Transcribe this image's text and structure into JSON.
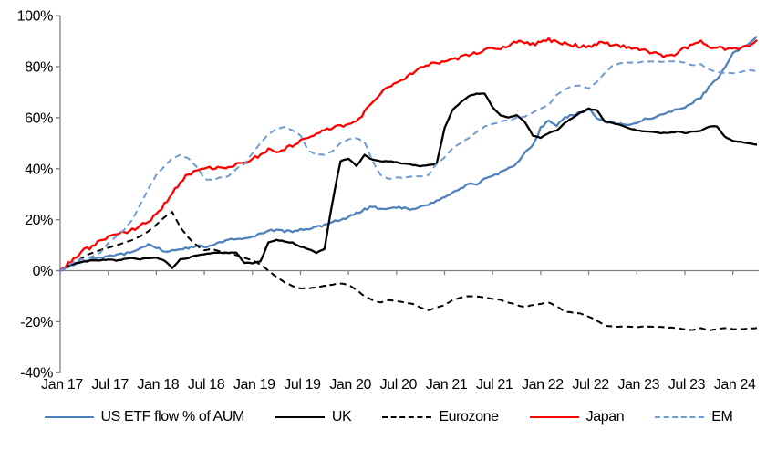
{
  "chart_data": {
    "type": "line",
    "title": "",
    "x_axis": {
      "tick_labels": [
        "Jan 17",
        "Jul 17",
        "Jan 18",
        "Jul 18",
        "Jan 19",
        "Jul 19",
        "Jan 20",
        "Jul 20",
        "Jan 21",
        "Jul 21",
        "Jan 22",
        "Jul 22",
        "Jan 23",
        "Jul 23",
        "Jan 24"
      ],
      "tick_month_indices": [
        0,
        6,
        12,
        18,
        24,
        30,
        36,
        42,
        48,
        54,
        60,
        66,
        72,
        78,
        84
      ]
    },
    "y_axis": {
      "min": -40,
      "max": 100,
      "tick_step": 20,
      "tick_labels": [
        "100%",
        "80%",
        "60%",
        "40%",
        "20%",
        "0%",
        "-20%",
        "-40%"
      ],
      "grid": "zero-line-only"
    },
    "x_start_month": "Jan 2017",
    "x_end_month": "Apr 2024",
    "axis_color": "#808080",
    "series": [
      {
        "name": "US ETF flow % of AUM",
        "color": "#4f81bd",
        "style": "solid",
        "noise": 0.45,
        "values": [
          0,
          1.5,
          3,
          4,
          4.5,
          5,
          5.5,
          6,
          6.5,
          7.5,
          9,
          10,
          9,
          7.5,
          8,
          8.5,
          9,
          9.5,
          9.5,
          10,
          11,
          12,
          12.5,
          13,
          13.5,
          14.5,
          15.5,
          16,
          15.5,
          15.5,
          16,
          16.5,
          17,
          18,
          19,
          20,
          21,
          22.5,
          24,
          25,
          24,
          24.5,
          25,
          24.5,
          24,
          25,
          26,
          27.5,
          29,
          30.5,
          32,
          34.5,
          34,
          36,
          37,
          38.5,
          40,
          42,
          46,
          49,
          56,
          59,
          57,
          60,
          61,
          62,
          63.5,
          60,
          58.5,
          58,
          57.5,
          57.5,
          58,
          59.5,
          60,
          61,
          62,
          63,
          64,
          66,
          68,
          72,
          75,
          80,
          85,
          87.5,
          89,
          92
        ]
      },
      {
        "name": "UK",
        "color": "#000000",
        "style": "solid",
        "noise": 0.15,
        "values": [
          0,
          2,
          3,
          3.5,
          4,
          4,
          4.5,
          4,
          4.5,
          5,
          4.5,
          5,
          5,
          4,
          1,
          4.5,
          5,
          6,
          6.5,
          7,
          7,
          7,
          7,
          3,
          3,
          3.5,
          11,
          12,
          11.5,
          11,
          9.5,
          8.5,
          7,
          8.5,
          27,
          43,
          44,
          41,
          45.5,
          43.5,
          43,
          43,
          42.5,
          42,
          41.5,
          41,
          41.5,
          42,
          56,
          63,
          66,
          68.5,
          69.5,
          69.5,
          64,
          61,
          60,
          61,
          58.5,
          53,
          52,
          54,
          55,
          58,
          60,
          62,
          63.5,
          63,
          58.5,
          58,
          57,
          56,
          55,
          54.5,
          54.5,
          54,
          54,
          54.5,
          54,
          54.5,
          55,
          56.5,
          56.5,
          52.5,
          51,
          50.5,
          50,
          49.5
        ]
      },
      {
        "name": "Eurozone",
        "color": "#000000",
        "style": "dashed",
        "noise": 0.1,
        "values": [
          0,
          2,
          3.5,
          5.5,
          7,
          8,
          9,
          10,
          11,
          12,
          13.5,
          15.5,
          18,
          21,
          23,
          17,
          13,
          10,
          8,
          8.5,
          7.5,
          7,
          6,
          5,
          4,
          2.5,
          0,
          -2.5,
          -4.5,
          -6,
          -7,
          -7,
          -6.5,
          -6,
          -5.5,
          -5,
          -5.5,
          -7.5,
          -10,
          -11.5,
          -12.5,
          -11.5,
          -12,
          -12.5,
          -13,
          -14.5,
          -15.5,
          -14.5,
          -13.5,
          -11.5,
          -10.5,
          -10,
          -10,
          -10.5,
          -11,
          -11.5,
          -12.5,
          -13.5,
          -14.3,
          -13.5,
          -13,
          -12.5,
          -14,
          -16,
          -16.5,
          -16.8,
          -18,
          -19.6,
          -21.5,
          -22,
          -22,
          -22,
          -22,
          -22,
          -22,
          -22,
          -22.3,
          -22.5,
          -23,
          -23.3,
          -22.5,
          -23.5,
          -23,
          -22.5,
          -23,
          -23,
          -22.8,
          -22.5
        ]
      },
      {
        "name": "Japan",
        "color": "#ff0000",
        "style": "solid",
        "noise": 0.7,
        "values": [
          0,
          3,
          5,
          8,
          9.5,
          12,
          13,
          14,
          15,
          16,
          17.5,
          19.5,
          22,
          26,
          30,
          35,
          38,
          39,
          40.5,
          40,
          41,
          40,
          41.5,
          42,
          44,
          45.5,
          47.5,
          46.5,
          48,
          49,
          51,
          52.5,
          54,
          55,
          56,
          56.5,
          57.5,
          59,
          62,
          66.5,
          69.5,
          72,
          73.5,
          75.5,
          77.5,
          80,
          81,
          81.5,
          82,
          83,
          83.5,
          84.5,
          85.5,
          86.5,
          87,
          87.5,
          88.5,
          90,
          89,
          88.8,
          89.5,
          90.5,
          90,
          89,
          88.5,
          88,
          88,
          89,
          89.5,
          88.5,
          88,
          87.8,
          87.5,
          86.5,
          85.6,
          84.5,
          84,
          85.5,
          87,
          89,
          90,
          88,
          87.5,
          87,
          87,
          87.5,
          88,
          90.5
        ]
      },
      {
        "name": "EM",
        "color": "#6f9bd1",
        "style": "dashed",
        "noise": 0.15,
        "values": [
          0,
          2,
          4,
          4.5,
          5.5,
          7,
          11,
          13.5,
          16,
          20,
          26,
          32,
          37.5,
          41,
          44,
          45.5,
          44,
          41,
          36,
          35.5,
          36.5,
          37,
          40,
          42,
          46,
          50,
          53.5,
          55.5,
          56.5,
          55,
          53,
          47,
          45.5,
          45.5,
          47,
          50,
          51.5,
          52,
          50.5,
          43,
          37.5,
          36,
          36.5,
          36.5,
          37,
          37,
          37.5,
          42,
          44.5,
          48,
          50,
          52,
          54.5,
          56.5,
          57.5,
          58.5,
          59,
          60,
          60.5,
          62,
          63.5,
          65,
          69,
          71,
          72.5,
          72.5,
          71.5,
          74,
          77.5,
          80.5,
          81.5,
          81.5,
          81.7,
          82,
          82,
          82,
          82,
          82,
          81.7,
          80.5,
          81,
          79,
          78,
          77.5,
          77.5,
          78,
          78.5,
          78.5
        ]
      }
    ]
  }
}
